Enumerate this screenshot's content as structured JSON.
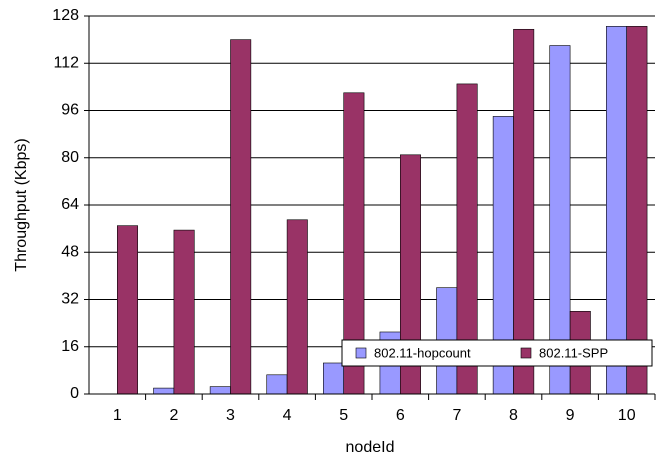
{
  "chart_data": {
    "type": "bar",
    "x_label": "nodeId",
    "y_label": "Throughput (Kbps)",
    "categories": [
      "1",
      "2",
      "3",
      "4",
      "5",
      "6",
      "7",
      "8",
      "9",
      "10"
    ],
    "series": [
      {
        "name": "802.11-hopcount",
        "color": "#9999ff",
        "values": [
          0,
          2,
          2.5,
          6.5,
          10.5,
          21,
          36,
          94,
          118,
          124.5
        ]
      },
      {
        "name": "802.11-SPP",
        "color": "#993366",
        "values": [
          57,
          55.5,
          120,
          59,
          102,
          81,
          105,
          123.5,
          28,
          124.5
        ]
      }
    ],
    "ylim": [
      0,
      128
    ],
    "yticks": [
      0,
      16,
      32,
      48,
      64,
      80,
      96,
      112,
      128
    ],
    "grid": true,
    "legend": "bottom-right"
  }
}
